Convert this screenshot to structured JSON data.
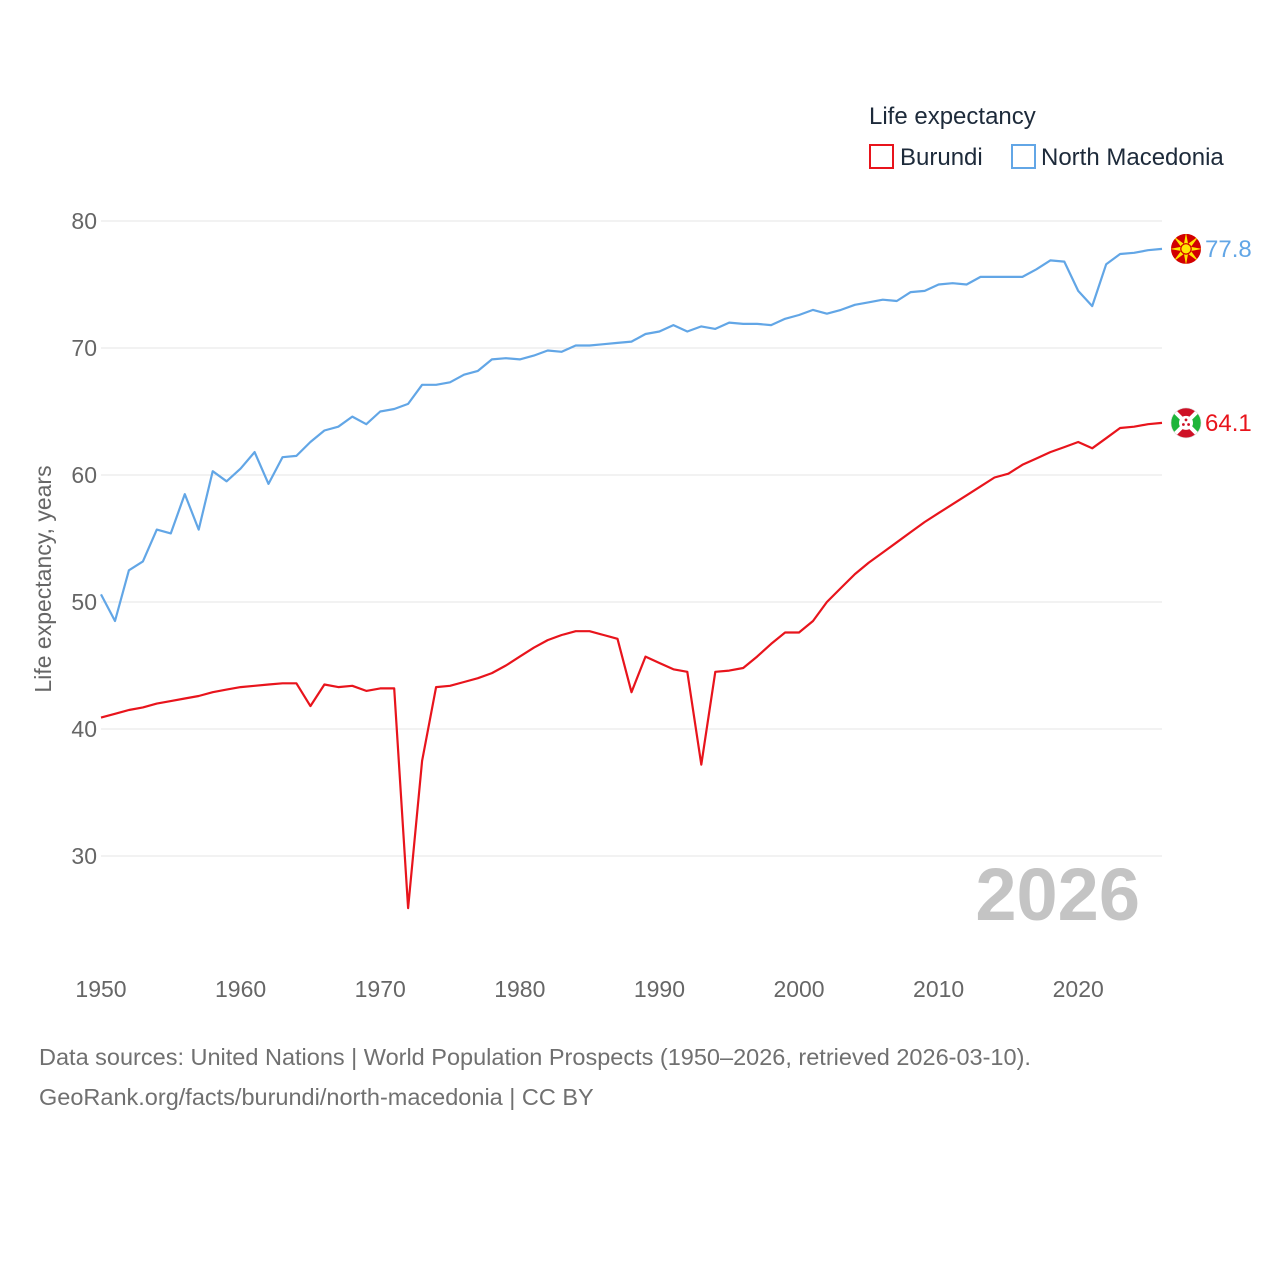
{
  "chart_data": {
    "type": "line",
    "legend_title": "Life expectancy",
    "ylabel": "Life expectancy, years",
    "xlabel": "",
    "year_watermark": "2026",
    "xlim": [
      1950,
      2026
    ],
    "ylim": [
      23,
      82
    ],
    "y_ticks": [
      30,
      40,
      50,
      60,
      70,
      80
    ],
    "x_ticks": [
      1950,
      1960,
      1970,
      1980,
      1990,
      2000,
      2010,
      2020
    ],
    "grid": true,
    "legend_position": "top-right",
    "series": [
      {
        "name": "Burundi",
        "color": "#e8141c",
        "end_label": "64.1",
        "flag_icon": "burundi-flag-icon",
        "x": [
          1950,
          1951,
          1952,
          1953,
          1954,
          1955,
          1956,
          1957,
          1958,
          1959,
          1960,
          1961,
          1962,
          1963,
          1964,
          1965,
          1966,
          1967,
          1968,
          1969,
          1970,
          1971,
          1972,
          1973,
          1974,
          1975,
          1976,
          1977,
          1978,
          1979,
          1980,
          1981,
          1982,
          1983,
          1984,
          1985,
          1986,
          1987,
          1988,
          1989,
          1990,
          1991,
          1992,
          1993,
          1994,
          1995,
          1996,
          1997,
          1998,
          1999,
          2000,
          2001,
          2002,
          2003,
          2004,
          2005,
          2006,
          2007,
          2008,
          2009,
          2010,
          2011,
          2012,
          2013,
          2014,
          2015,
          2016,
          2017,
          2018,
          2019,
          2020,
          2021,
          2022,
          2023,
          2024,
          2025,
          2026
        ],
        "values": [
          40.9,
          41.2,
          41.5,
          41.7,
          42.0,
          42.2,
          42.4,
          42.6,
          42.9,
          43.1,
          43.3,
          43.4,
          43.5,
          43.6,
          43.6,
          41.8,
          43.5,
          43.3,
          43.4,
          43.0,
          43.2,
          43.2,
          25.9,
          37.5,
          43.3,
          43.4,
          43.7,
          44.0,
          44.4,
          45.0,
          45.7,
          46.4,
          47.0,
          47.4,
          47.7,
          47.7,
          47.4,
          47.1,
          42.9,
          45.7,
          45.2,
          44.7,
          44.5,
          37.2,
          44.5,
          44.6,
          44.8,
          45.7,
          46.7,
          47.6,
          47.6,
          48.5,
          50.0,
          51.1,
          52.2,
          53.1,
          53.9,
          54.7,
          55.5,
          56.3,
          57.0,
          57.7,
          58.4,
          59.1,
          59.8,
          60.1,
          60.8,
          61.3,
          61.8,
          62.2,
          62.6,
          62.1,
          62.9,
          63.7,
          63.8,
          64.0,
          64.1
        ]
      },
      {
        "name": "North Macedonia",
        "color": "#62a6e6",
        "end_label": "77.8",
        "flag_icon": "north-macedonia-flag-icon",
        "x": [
          1950,
          1951,
          1952,
          1953,
          1954,
          1955,
          1956,
          1957,
          1958,
          1959,
          1960,
          1961,
          1962,
          1963,
          1964,
          1965,
          1966,
          1967,
          1968,
          1969,
          1970,
          1971,
          1972,
          1973,
          1974,
          1975,
          1976,
          1977,
          1978,
          1979,
          1980,
          1981,
          1982,
          1983,
          1984,
          1985,
          1986,
          1987,
          1988,
          1989,
          1990,
          1991,
          1992,
          1993,
          1994,
          1995,
          1996,
          1997,
          1998,
          1999,
          2000,
          2001,
          2002,
          2003,
          2004,
          2005,
          2006,
          2007,
          2008,
          2009,
          2010,
          2011,
          2012,
          2013,
          2014,
          2015,
          2016,
          2017,
          2018,
          2019,
          2020,
          2021,
          2022,
          2023,
          2024,
          2025,
          2026
        ],
        "values": [
          50.6,
          48.5,
          52.5,
          53.2,
          55.7,
          55.4,
          58.5,
          55.7,
          60.3,
          59.5,
          60.5,
          61.8,
          59.3,
          61.4,
          61.5,
          62.6,
          63.5,
          63.8,
          64.6,
          64.0,
          65.0,
          65.2,
          65.6,
          67.1,
          67.1,
          67.3,
          67.9,
          68.2,
          69.1,
          69.2,
          69.1,
          69.4,
          69.8,
          69.7,
          70.2,
          70.2,
          70.3,
          70.4,
          70.5,
          71.1,
          71.3,
          71.8,
          71.3,
          71.7,
          71.5,
          72.0,
          71.9,
          71.9,
          71.8,
          72.3,
          72.6,
          73.0,
          72.7,
          73.0,
          73.4,
          73.6,
          73.8,
          73.7,
          74.4,
          74.5,
          75.0,
          75.1,
          75.0,
          75.6,
          75.6,
          75.6,
          75.6,
          76.2,
          76.9,
          76.8,
          74.5,
          73.3,
          76.6,
          77.4,
          77.5,
          77.7,
          77.8
        ]
      }
    ]
  },
  "footer": {
    "source_line": "Data sources: United Nations | World Population Prospects (1950–2026, retrieved 2026-03-10).",
    "credit_line": "GeoRank.org/facts/burundi/north-macedonia | CC BY"
  }
}
